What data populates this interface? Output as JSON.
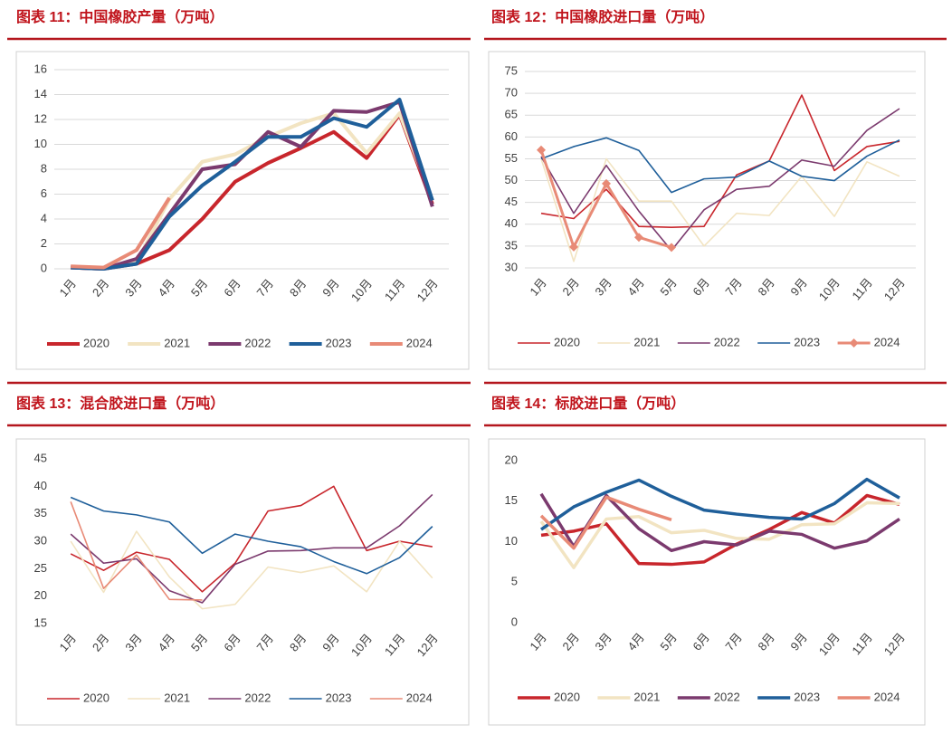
{
  "chart_data": [
    {
      "type": "line",
      "title": "图表 11：中国橡胶产量（万吨）",
      "categories": [
        "1月",
        "2月",
        "3月",
        "4月",
        "5月",
        "6月",
        "7月",
        "8月",
        "9月",
        "10月",
        "11月",
        "12月"
      ],
      "ylim": [
        0,
        16
      ],
      "yticks": [
        0,
        2,
        4,
        6,
        8,
        10,
        12,
        14,
        16
      ],
      "grid": true,
      "legend": "bottom",
      "series": [
        {
          "name": "2020",
          "color": "#c8262c",
          "values": [
            0.1,
            0,
            0.4,
            1.5,
            4,
            7,
            8.5,
            9.7,
            11,
            8.9,
            12.4,
            5.2
          ]
        },
        {
          "name": "2021",
          "color": "#f2e4c2",
          "values": [
            0.1,
            0,
            0.5,
            5.6,
            8.6,
            9.2,
            10.6,
            11.7,
            12.5,
            9.3,
            12.5,
            5.5
          ]
        },
        {
          "name": "2022",
          "color": "#7b3a6e",
          "values": [
            0.1,
            0,
            0.8,
            4.4,
            8.0,
            8.4,
            11.0,
            9.8,
            12.7,
            12.6,
            13.4,
            5.0
          ]
        },
        {
          "name": "2023",
          "color": "#1f5f9a",
          "values": [
            0.1,
            0,
            0.4,
            4.2,
            6.7,
            8.6,
            10.6,
            10.6,
            12.1,
            11.4,
            13.6,
            5.5
          ]
        },
        {
          "name": "2024",
          "color": "#e88a76",
          "values": [
            0.2,
            0.1,
            1.5,
            5.7,
            null,
            null,
            null,
            null,
            null,
            null,
            null,
            null
          ]
        }
      ]
    },
    {
      "type": "line",
      "title": "图表 12：中国橡胶进口量（万吨）",
      "categories": [
        "1月",
        "2月",
        "3月",
        "4月",
        "5月",
        "6月",
        "7月",
        "8月",
        "9月",
        "10月",
        "11月",
        "12月"
      ],
      "ylim": [
        30,
        75
      ],
      "yticks": [
        30,
        35,
        40,
        45,
        50,
        55,
        60,
        65,
        70,
        75
      ],
      "grid": true,
      "legend": "bottom",
      "series": [
        {
          "name": "2020",
          "color": "#c8262c",
          "values": [
            42.5,
            41.3,
            48,
            39.5,
            39.3,
            39.5,
            51.3,
            54.5,
            69.6,
            52.3,
            57.8,
            59
          ]
        },
        {
          "name": "2021",
          "color": "#f2e4c2",
          "values": [
            55,
            31.5,
            55,
            45.3,
            45.3,
            35,
            42.5,
            42,
            51,
            41.8,
            54.3,
            51
          ]
        },
        {
          "name": "2022",
          "color": "#7b3a6e",
          "values": [
            55.5,
            42.5,
            53.5,
            43,
            34,
            43.3,
            48,
            48.7,
            54.7,
            53.3,
            61.5,
            66.5
          ]
        },
        {
          "name": "2023",
          "color": "#1f5f9a",
          "values": [
            55,
            57.8,
            59.8,
            56.9,
            47.3,
            50.4,
            50.8,
            54.5,
            51,
            50,
            55.6,
            59.3
          ]
        },
        {
          "name": "2024",
          "color": "#e88a76",
          "marker": "diamond",
          "values": [
            57,
            34.8,
            49.3,
            37,
            34.7,
            null,
            null,
            null,
            null,
            null,
            null,
            null
          ]
        }
      ]
    },
    {
      "type": "line",
      "title": "图表 13：混合胶进口量（万吨）",
      "categories": [
        "1月",
        "2月",
        "3月",
        "4月",
        "5月",
        "6月",
        "7月",
        "8月",
        "9月",
        "10月",
        "11月",
        "12月"
      ],
      "ylim": [
        15,
        45
      ],
      "yticks": [
        15,
        20,
        25,
        30,
        35,
        40,
        45
      ],
      "grid": false,
      "legend": "bottom",
      "series": [
        {
          "name": "2020",
          "color": "#c8262c",
          "values": [
            27.7,
            24.7,
            28,
            26.7,
            20.8,
            26,
            35.5,
            36.5,
            40,
            28.3,
            30,
            29
          ]
        },
        {
          "name": "2021",
          "color": "#f2e4c2",
          "values": [
            30,
            20.7,
            31.8,
            23.5,
            17.7,
            18.5,
            25.3,
            24.3,
            25.5,
            20.8,
            30,
            23.3
          ]
        },
        {
          "name": "2022",
          "color": "#7b3a6e",
          "values": [
            31.3,
            26,
            26.8,
            21,
            18.8,
            25.8,
            28.2,
            28.3,
            28.8,
            28.8,
            32.8,
            38.5
          ]
        },
        {
          "name": "2023",
          "color": "#1f5f9a",
          "values": [
            38,
            35.5,
            34.8,
            33.5,
            27.8,
            31.3,
            30,
            29,
            26.3,
            24.1,
            27,
            32.7
          ]
        },
        {
          "name": "2024",
          "color": "#e88a76",
          "values": [
            37.2,
            21.4,
            27.5,
            19.4,
            19.3,
            null,
            null,
            null,
            null,
            null,
            null,
            null
          ]
        }
      ]
    },
    {
      "type": "line",
      "title": "图表 14：标胶进口量（万吨）",
      "categories": [
        "1月",
        "2月",
        "3月",
        "4月",
        "5月",
        "6月",
        "7月",
        "8月",
        "9月",
        "10月",
        "11月",
        "12月"
      ],
      "ylim": [
        0,
        20
      ],
      "yticks": [
        0,
        5,
        10,
        15,
        20
      ],
      "grid": false,
      "legend": "bottom",
      "series": [
        {
          "name": "2020",
          "color": "#c8262c",
          "values": [
            10.8,
            11.3,
            12.2,
            7.3,
            7.2,
            7.5,
            9.7,
            11.5,
            13.6,
            12.3,
            15.7,
            14.6
          ]
        },
        {
          "name": "2021",
          "color": "#f2e4c2",
          "values": [
            12.5,
            6.8,
            12.8,
            13.1,
            11.1,
            11.4,
            10.4,
            10.3,
            12.1,
            12.2,
            14.8,
            14.7
          ]
        },
        {
          "name": "2022",
          "color": "#7b3a6e",
          "values": [
            15.9,
            9.4,
            15.7,
            11.6,
            8.9,
            10,
            9.6,
            11.3,
            10.9,
            9.2,
            10.1,
            12.8
          ]
        },
        {
          "name": "2023",
          "color": "#1f5f9a",
          "values": [
            11.5,
            14.3,
            16.1,
            17.6,
            15.6,
            13.9,
            13.4,
            13,
            12.8,
            14.7,
            17.7,
            15.4
          ]
        },
        {
          "name": "2024",
          "color": "#e88a76",
          "values": [
            13.2,
            9.2,
            15.5,
            14,
            12.7,
            null,
            null,
            null,
            null,
            null,
            null,
            null
          ]
        }
      ]
    }
  ]
}
